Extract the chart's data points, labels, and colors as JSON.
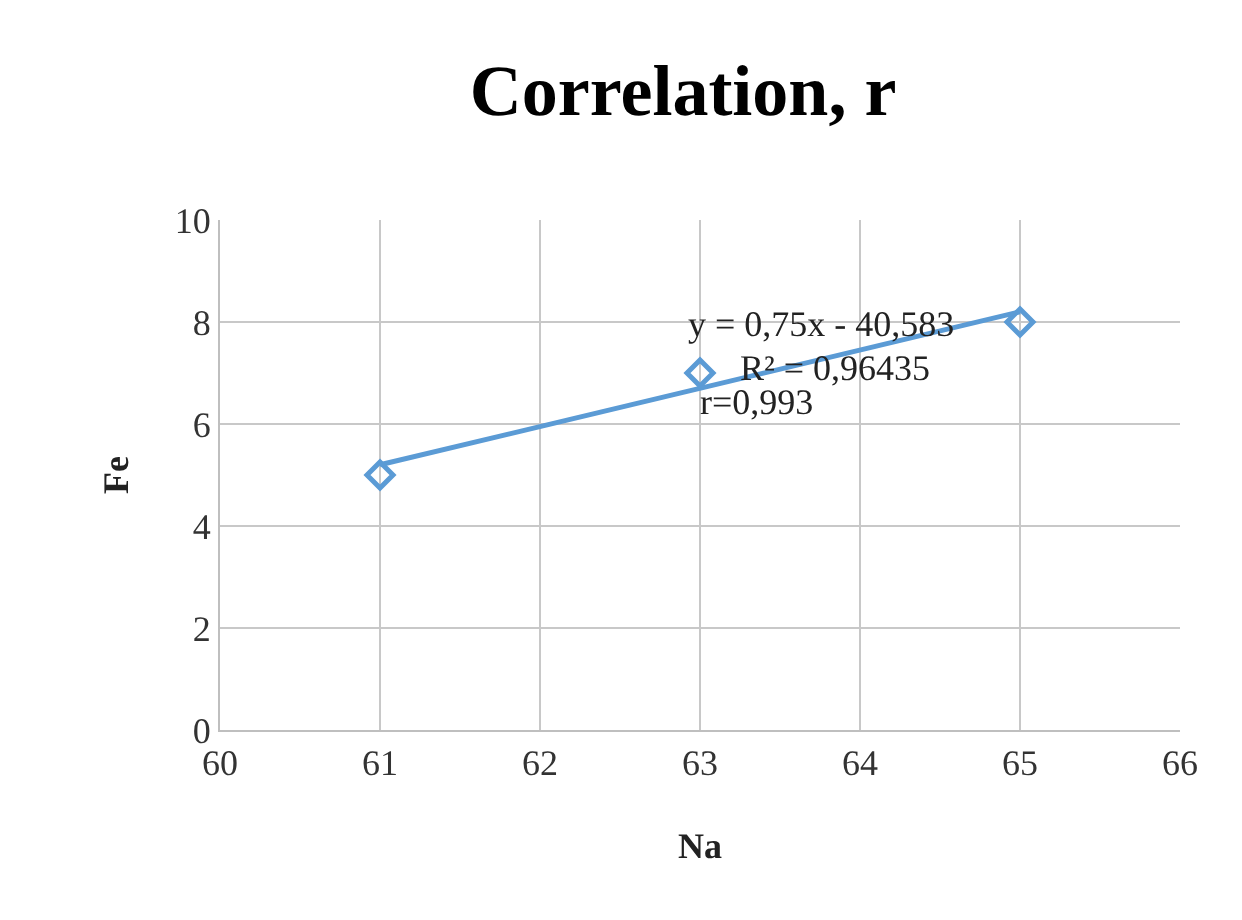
{
  "chart_data": {
    "type": "scatter",
    "title": "Correlation, r",
    "xlabel": "Na",
    "ylabel": "Fe",
    "x": [
      61,
      63,
      65
    ],
    "series": [
      {
        "color": "#5b9bd5",
        "values": [
          5,
          7,
          8
        ],
        "marker": "diamond"
      },
      {
        "type": "line",
        "color": "#5b9bd5",
        "x": [
          61,
          65
        ],
        "values": [
          5.2,
          8.2
        ],
        "marker": "none"
      }
    ],
    "xlim": [
      60,
      66
    ],
    "xticks": [
      60,
      61,
      62,
      63,
      64,
      65,
      66
    ],
    "ylim": [
      0,
      10
    ],
    "yticks": [
      0,
      2,
      4,
      6,
      8,
      10
    ],
    "grid": true,
    "annotations": [
      "y = 0,75x - 40,583",
      "R² = 0,96435",
      "r=0,993"
    ]
  }
}
